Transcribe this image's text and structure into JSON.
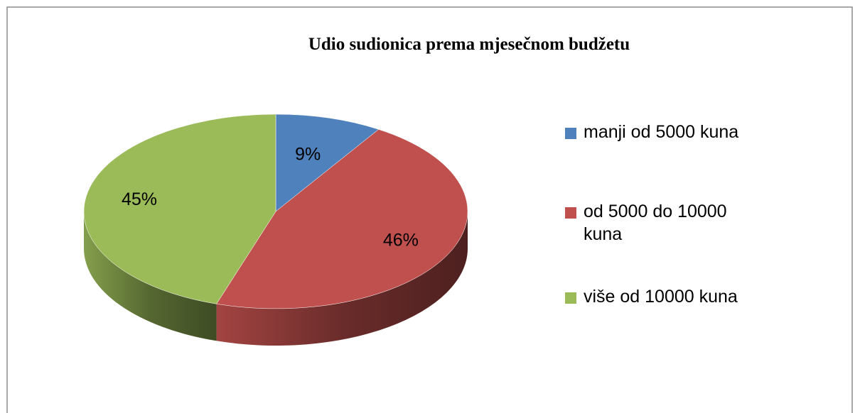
{
  "chart_data": {
    "type": "pie",
    "title": "Udio sudionica prema mjesečnom budžetu",
    "categories": [
      "manji od 5000 kuna",
      "od 5000 do 10000 kuna",
      "više od 10000 kuna"
    ],
    "values": [
      9,
      46,
      45
    ],
    "value_labels": [
      "9%",
      "46%",
      "45%"
    ],
    "colors": [
      "#4f81bd",
      "#c0504d",
      "#9bbb59"
    ],
    "legend": "right"
  }
}
